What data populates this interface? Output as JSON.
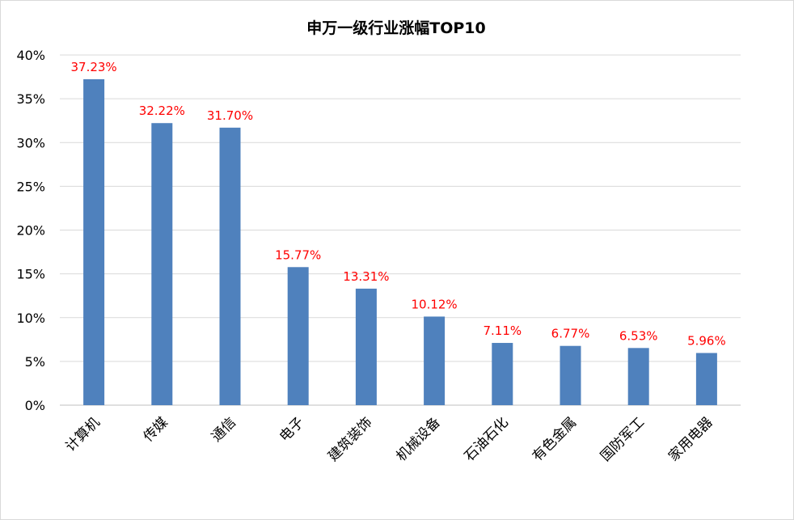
{
  "chart_data": {
    "type": "bar",
    "title": "申万一级行业涨幅TOP10",
    "categories": [
      "计算机",
      "传媒",
      "通信",
      "电子",
      "建筑装饰",
      "机械设备",
      "石油石化",
      "有色金属",
      "国防军工",
      "家用电器"
    ],
    "values": [
      37.23,
      32.22,
      31.7,
      15.77,
      13.31,
      10.12,
      7.11,
      6.77,
      6.53,
      5.96
    ],
    "data_labels": [
      "37.23%",
      "32.22%",
      "31.70%",
      "15.77%",
      "13.31%",
      "10.12%",
      "7.11%",
      "6.77%",
      "6.53%",
      "5.96%"
    ],
    "ylim": [
      0,
      40
    ],
    "yticks": [
      "0%",
      "5%",
      "10%",
      "15%",
      "20%",
      "25%",
      "30%",
      "35%",
      "40%"
    ],
    "xlabel": "",
    "ylabel": "",
    "grid": true,
    "legend": "none",
    "colors": {
      "bar": "#4f81bd",
      "label": "#ff0000",
      "grid": "#d9d9d9"
    }
  }
}
